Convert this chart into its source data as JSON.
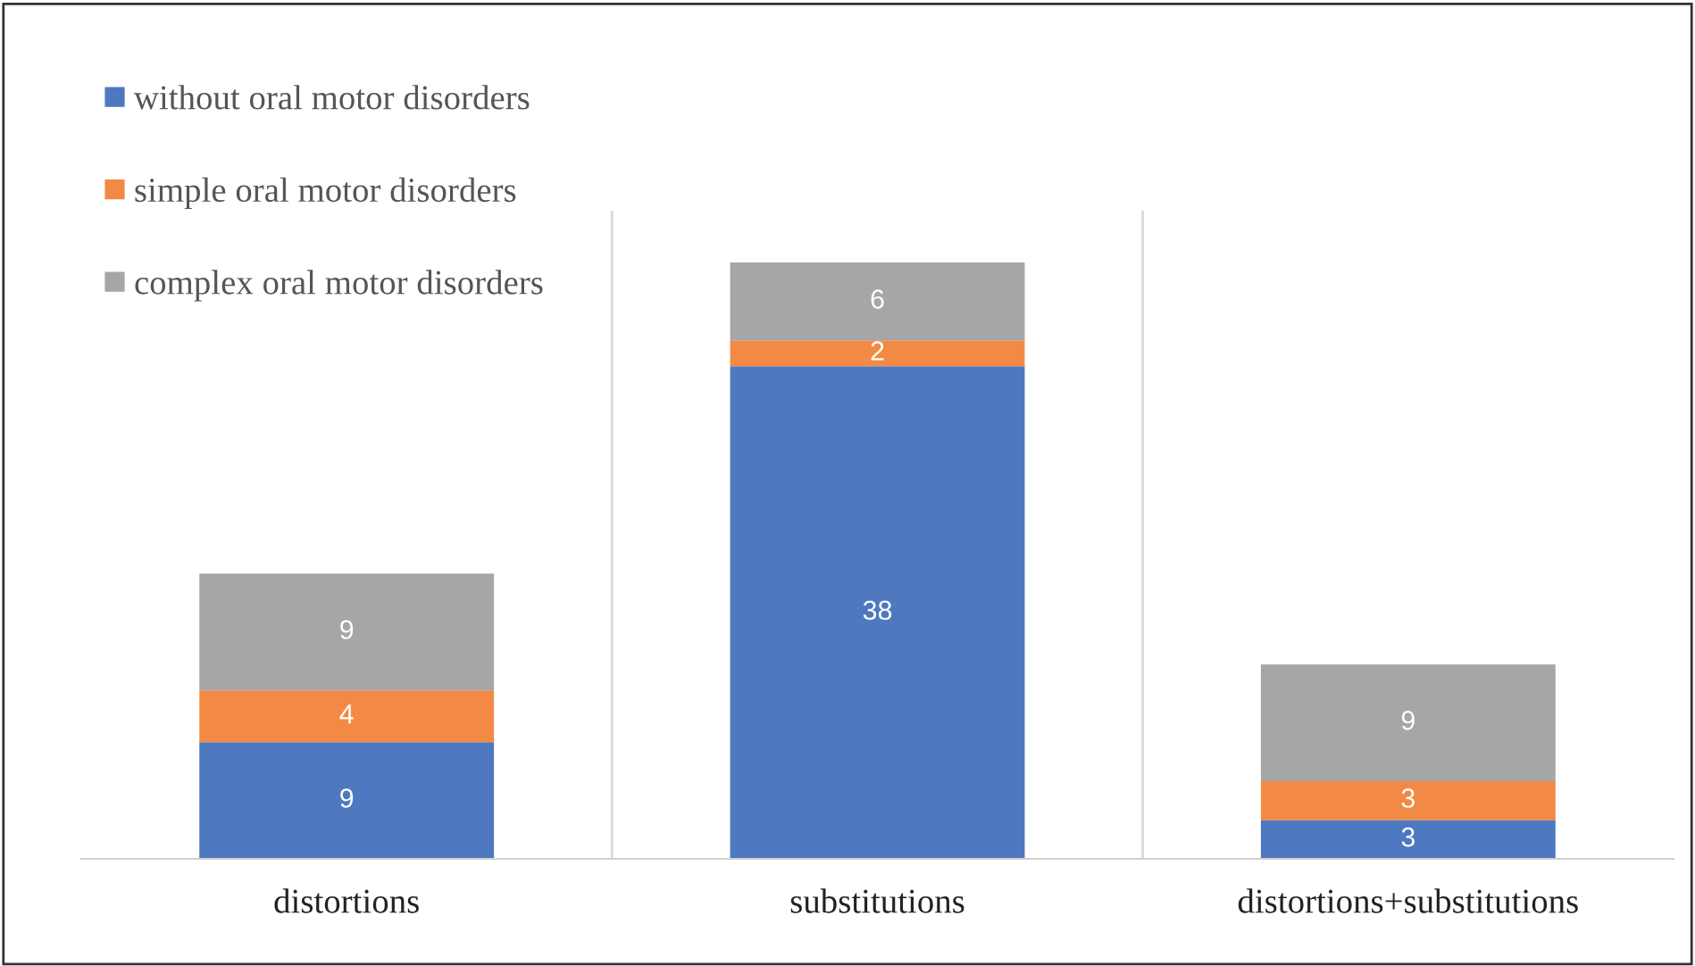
{
  "chart_data": {
    "type": "bar",
    "stacked": true,
    "categories": [
      "distortions",
      "substitutions",
      "distortions+substitutions"
    ],
    "series": [
      {
        "name": "without oral motor disorders",
        "color": "#4e79c0",
        "values": [
          9,
          38,
          3
        ]
      },
      {
        "name": "simple oral motor disorders",
        "color": "#f28a45",
        "values": [
          4,
          2,
          3
        ]
      },
      {
        "name": "complex oral motor disorders",
        "color": "#a5a6a8",
        "values": [
          9,
          6,
          9
        ]
      }
    ],
    "ylim": [
      0,
      50
    ],
    "data_labels": true,
    "grid": "x",
    "legend": "top left",
    "tick_labels": "x"
  }
}
